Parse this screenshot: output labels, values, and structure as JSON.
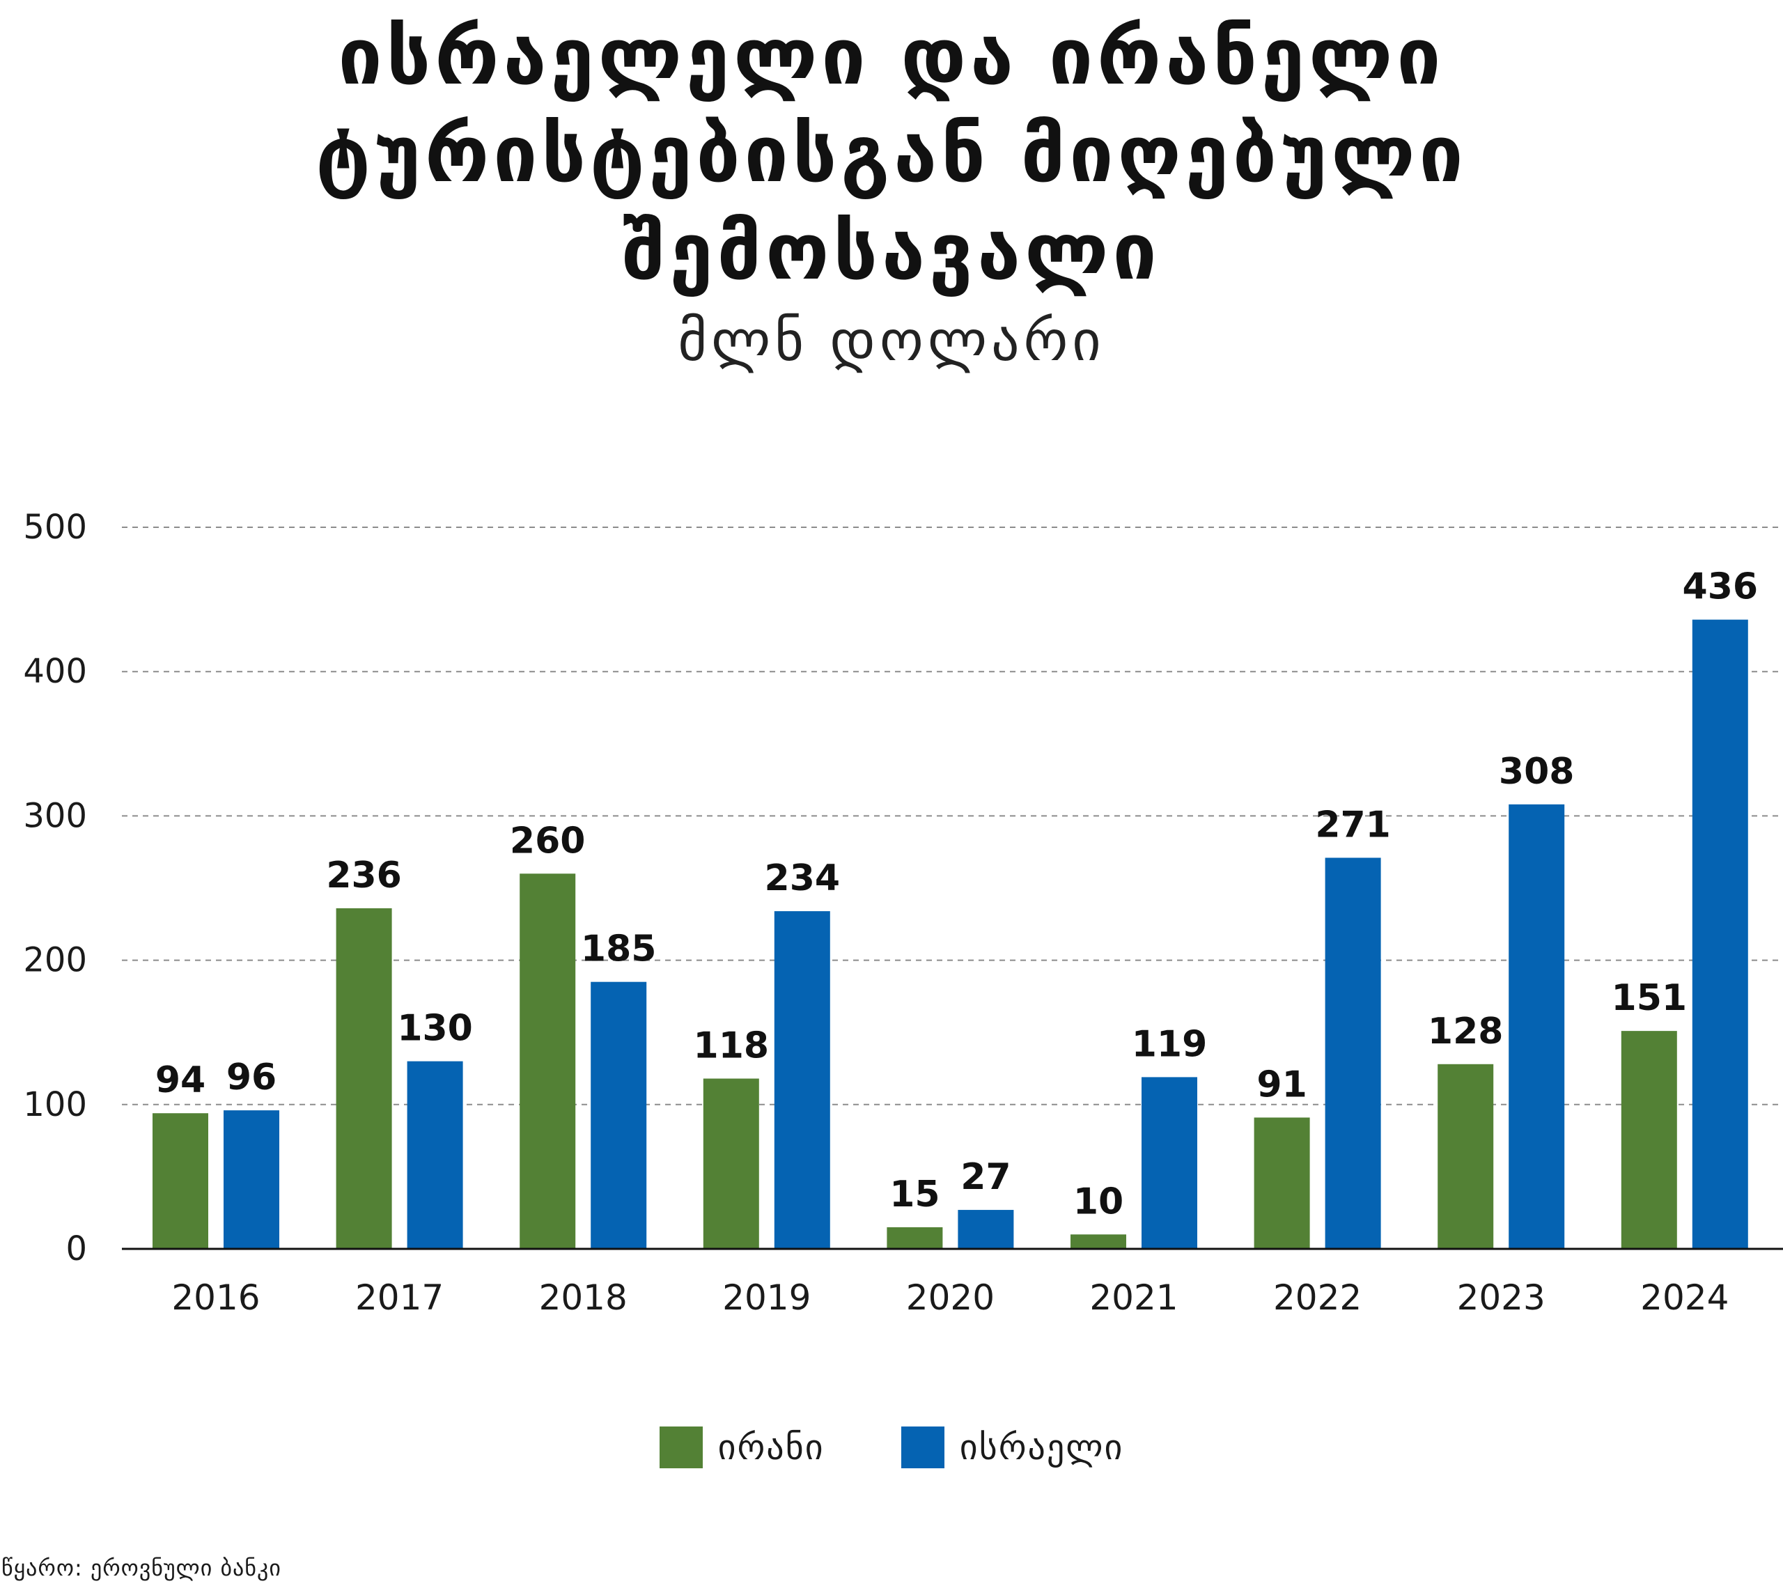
{
  "title_lines": [
    "ისრაელელი და ირანელი",
    "ტურისტებისგან მიღებული",
    "შემოსავალი"
  ],
  "subtitle": "მლნ დოლარი",
  "source": "წყარო: ეროვნული ბანკი",
  "colors": {
    "iran": "#538135",
    "israel": "#0563b2",
    "grid": "#8c8c8c",
    "axis": "#111111"
  },
  "chart_data": {
    "type": "bar",
    "title": "ისრაელელი და ირანელი ტურისტებისგან მიღებული შემოსავალი",
    "subtitle": "მლნ დოლარი",
    "categories": [
      "2016",
      "2017",
      "2018",
      "2019",
      "2020",
      "2021",
      "2022",
      "2023",
      "2024"
    ],
    "series": [
      {
        "name": "ირანი",
        "color": "#538135",
        "values": [
          94,
          236,
          260,
          118,
          15,
          10,
          91,
          128,
          151
        ]
      },
      {
        "name": "ისრაელი",
        "color": "#0563b2",
        "values": [
          96,
          130,
          185,
          234,
          27,
          119,
          271,
          308,
          436
        ]
      }
    ],
    "ylim": [
      0,
      500
    ],
    "yticks": [
      0,
      100,
      200,
      300,
      400,
      500
    ],
    "grid": true,
    "grid_style": "dashed",
    "legend_position": "bottom",
    "data_labels": true
  }
}
